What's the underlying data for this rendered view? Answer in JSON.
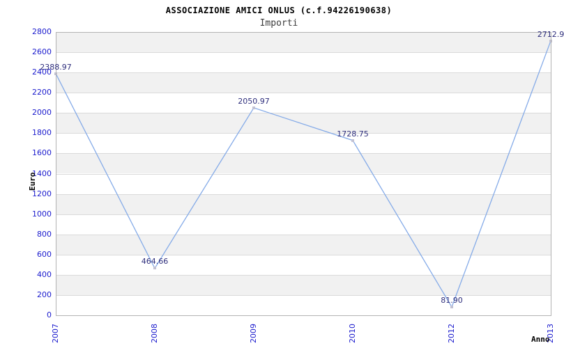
{
  "header": {
    "title": "ASSOCIAZIONE AMICI ONLUS (c.f.94226190638)",
    "subtitle": "Importi"
  },
  "chart_data": {
    "type": "line",
    "title": "ASSOCIAZIONE AMICI ONLUS (c.f.94226190638)",
    "subtitle": "Importi",
    "categories": [
      "2007",
      "2008",
      "2009",
      "2010",
      "2012",
      "2013"
    ],
    "series": [
      {
        "name": "Importi",
        "values": [
          2388.97,
          464.66,
          2050.97,
          1728.75,
          81.9,
          2712.9
        ],
        "point_labels": [
          "2388.97",
          "464.66",
          "2050.97",
          "1728.75",
          "81.90",
          "2712.9"
        ]
      }
    ],
    "xlabel": "Anno",
    "ylabel": "Euro",
    "ylim": [
      0,
      2800
    ],
    "ytick_step": 200,
    "legend": "none",
    "grid": "horizontal gridlines with alternating shaded bands",
    "colors": {
      "line": "#85abe8",
      "marker": "#c2c2d4",
      "tick_label": "#1a1acd",
      "point_label": "#2e2e7c",
      "band_shaded": "#f1f1f1",
      "band_plain": "#ffffff",
      "gridline": "#dadada",
      "plot_border": "#b3b3b3",
      "title": "#000000",
      "subtitle": "#3d3d3d"
    }
  }
}
